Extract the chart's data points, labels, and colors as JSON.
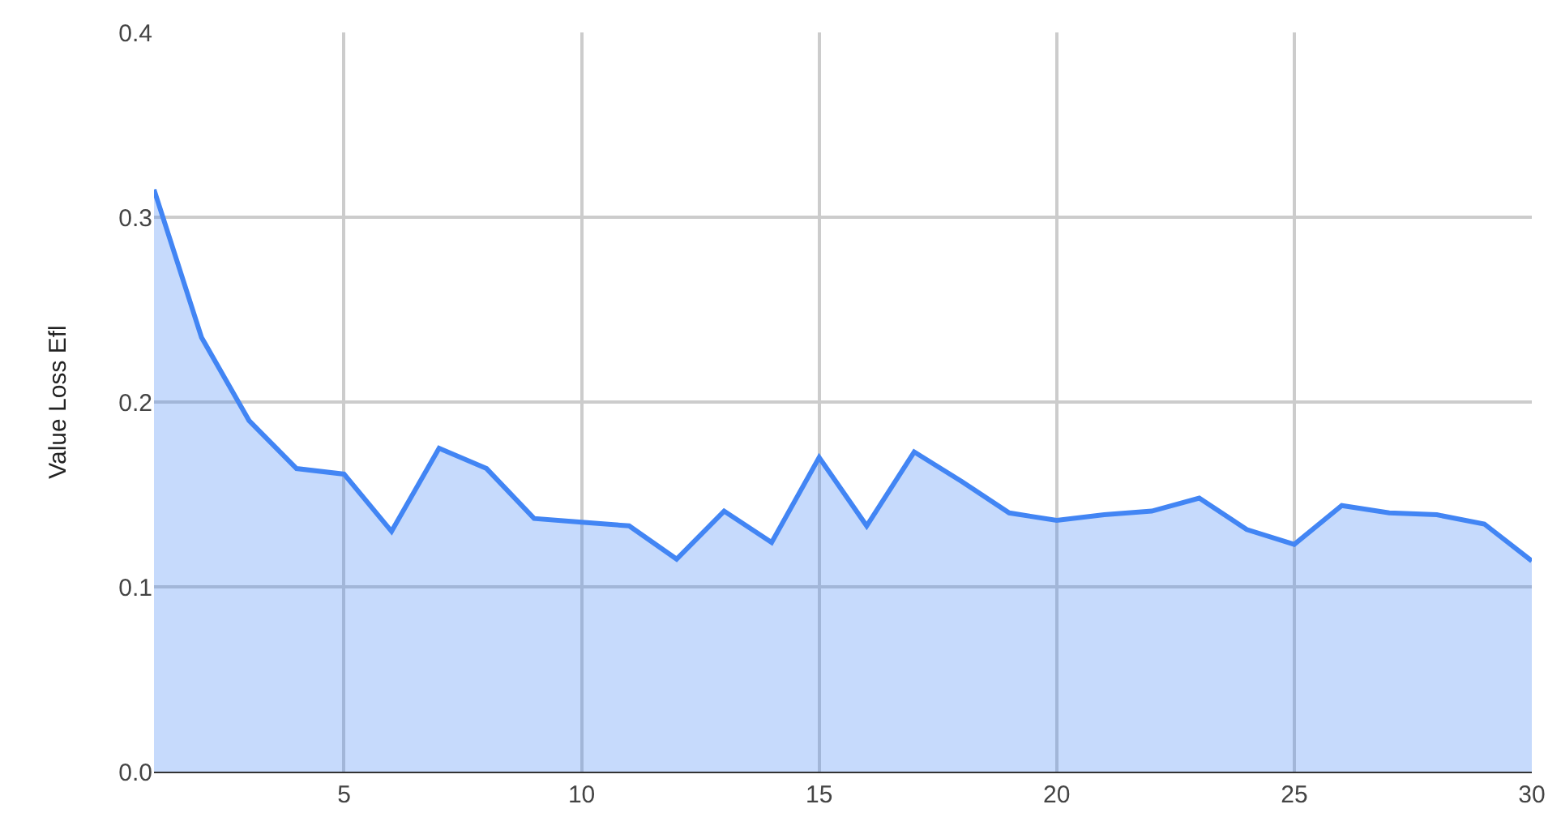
{
  "chart_data": {
    "type": "area",
    "ylabel": "Value Loss Efl",
    "x": [
      1,
      2,
      3,
      4,
      5,
      6,
      7,
      8,
      9,
      10,
      11,
      12,
      13,
      14,
      15,
      16,
      17,
      18,
      19,
      20,
      21,
      22,
      23,
      24,
      25,
      26,
      27,
      28,
      29,
      30
    ],
    "series": [
      {
        "color": "#4285f4",
        "values": [
          0.315,
          0.235,
          0.19,
          0.164,
          0.161,
          0.13,
          0.175,
          0.164,
          0.137,
          0.135,
          0.133,
          0.115,
          0.141,
          0.124,
          0.17,
          0.133,
          0.173,
          0.157,
          0.14,
          0.136,
          0.139,
          0.141,
          0.148,
          0.131,
          0.123,
          0.144,
          0.14,
          0.139,
          0.134,
          0.114
        ]
      }
    ],
    "xlim": [
      1,
      30
    ],
    "xticks": [
      5,
      10,
      15,
      20,
      25,
      30
    ],
    "ylim": [
      0,
      0.4
    ],
    "yticks": [
      {
        "value": 0,
        "label": "0.0"
      },
      {
        "value": 0.1,
        "label": "0.1"
      },
      {
        "value": 0.2,
        "label": "0.2"
      },
      {
        "value": 0.3,
        "label": "0.3"
      },
      {
        "value": 0.4,
        "label": "0.4"
      }
    ],
    "grid": true
  }
}
